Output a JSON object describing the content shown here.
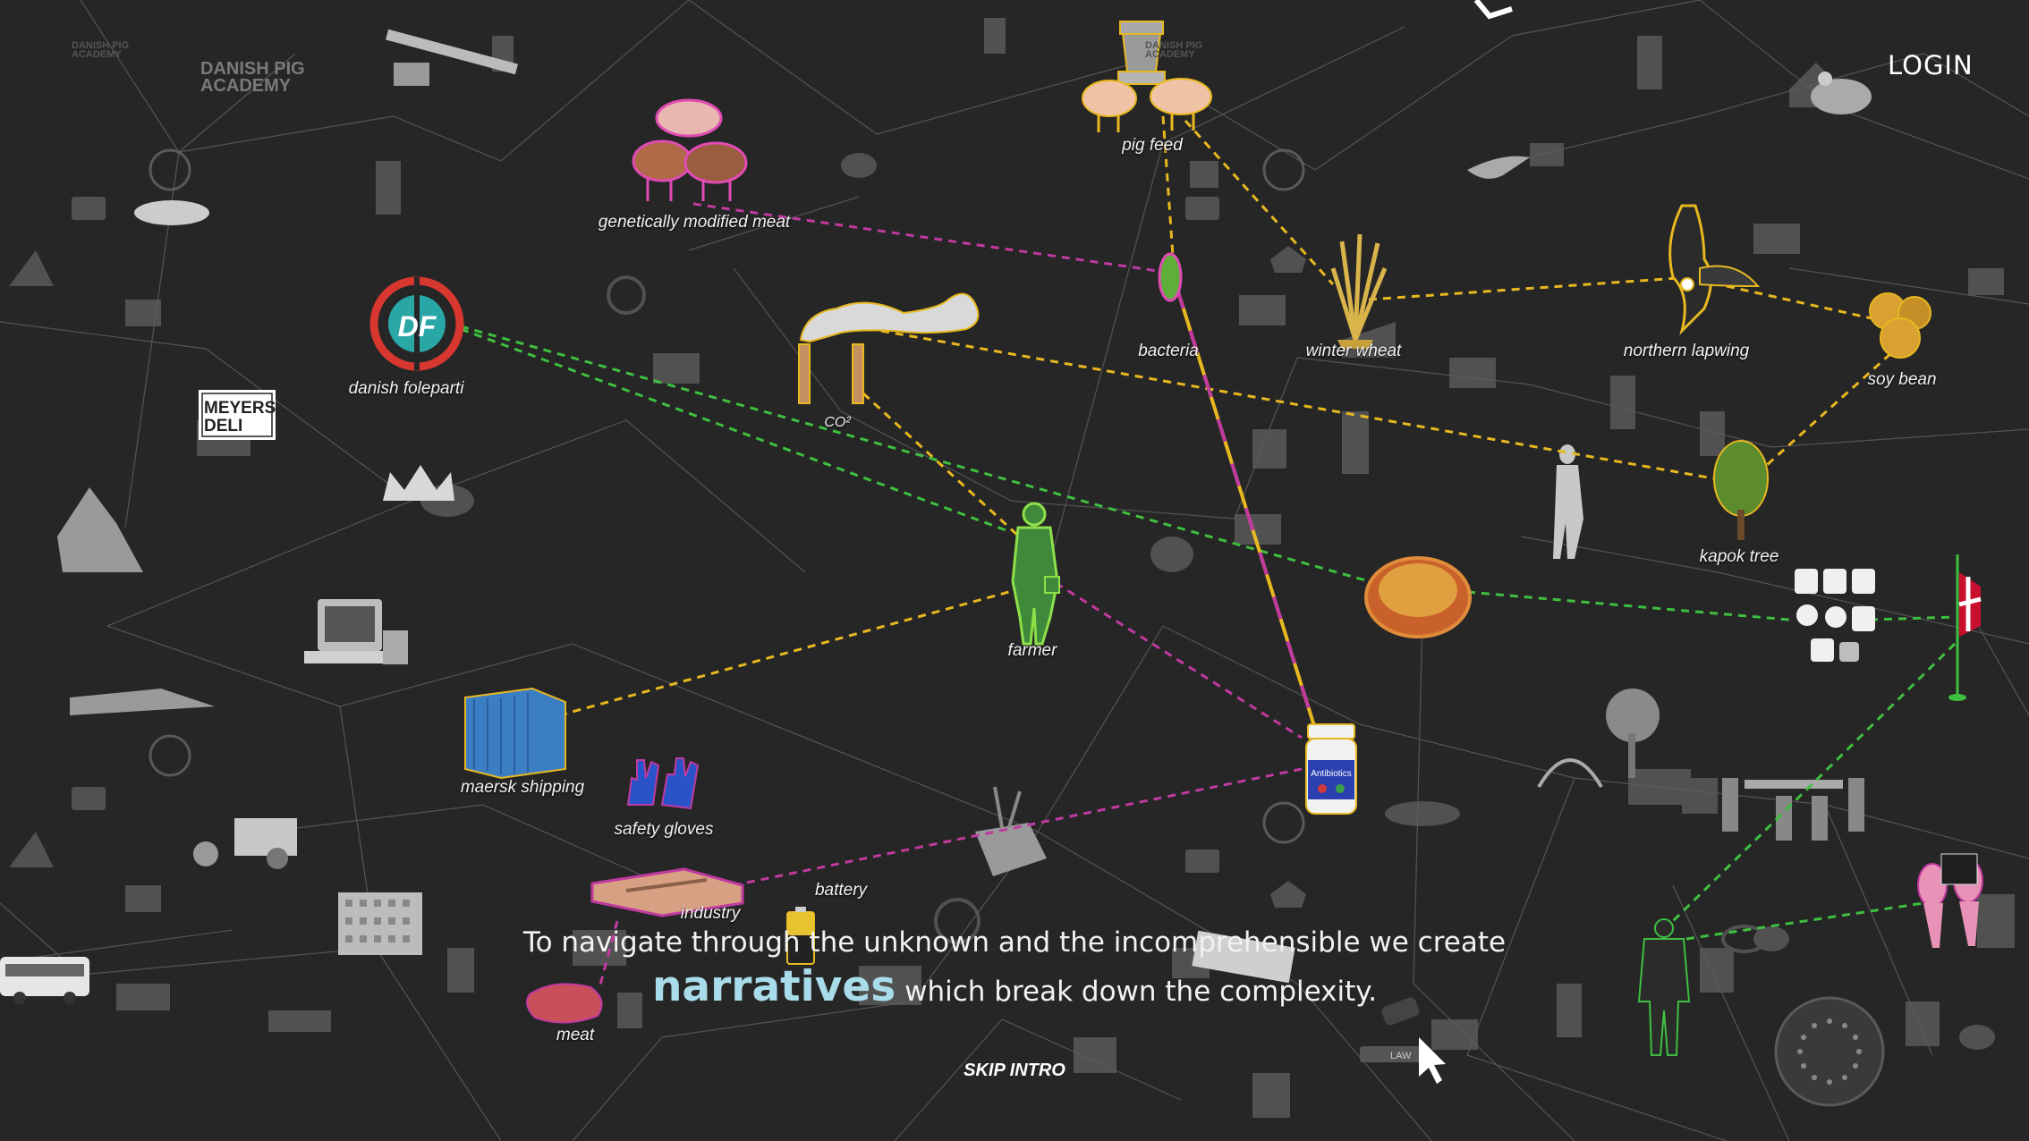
{
  "header": {
    "login_label": "LOGIN",
    "logo_text": "DANISH PIG ACADEMY"
  },
  "intro": {
    "line1": "To navigate through the unknown and the incomprehensible we create",
    "highlight": "narratives",
    "line2_rest": "which break down the complexity."
  },
  "skip_label": "SKIP INTRO",
  "brand": {
    "meyers_line1": "MEYERS",
    "meyers_line2": "DELI",
    "df_text": "DF",
    "law_text": "LAW",
    "antibiotics_text": "Antibiotics"
  },
  "colors": {
    "background": "#262626",
    "highlight": "#a9dcea",
    "yellow_link": "#e8b820",
    "green_link": "#3fbf3f",
    "magenta_link": "#c03aa0"
  },
  "nodes": [
    {
      "id": "gmo-meat",
      "label": "genetically modified meat",
      "icon": "pigs-icon"
    },
    {
      "id": "pig-feed",
      "label": "pig feed",
      "icon": "feeder-icon"
    },
    {
      "id": "danish-foleparti",
      "label": "danish foleparti",
      "icon": "df-logo-icon"
    },
    {
      "id": "co2",
      "label": "CO²",
      "icon": "smokestack-icon"
    },
    {
      "id": "bacteria",
      "label": "bacteria",
      "icon": "bacteria-icon"
    },
    {
      "id": "winter-wheat",
      "label": "winter wheat",
      "icon": "wheat-icon"
    },
    {
      "id": "northern-lapwing",
      "label": "northern lapwing",
      "icon": "bird-icon"
    },
    {
      "id": "soy-bean",
      "label": "soy bean",
      "icon": "soybean-icon"
    },
    {
      "id": "kapok-tree",
      "label": "kapok tree",
      "icon": "tree-icon"
    },
    {
      "id": "farmer",
      "label": "farmer",
      "icon": "farmer-icon"
    },
    {
      "id": "maersk-shipping",
      "label": "maersk shipping",
      "icon": "container-icon"
    },
    {
      "id": "safety-gloves",
      "label": "safety gloves",
      "icon": "gloves-icon"
    },
    {
      "id": "battery",
      "label": "battery",
      "icon": "battery-icon"
    },
    {
      "id": "industry",
      "label": "industry",
      "icon": "factory-icon"
    },
    {
      "id": "meat",
      "label": "meat",
      "icon": "meat-icon"
    }
  ]
}
